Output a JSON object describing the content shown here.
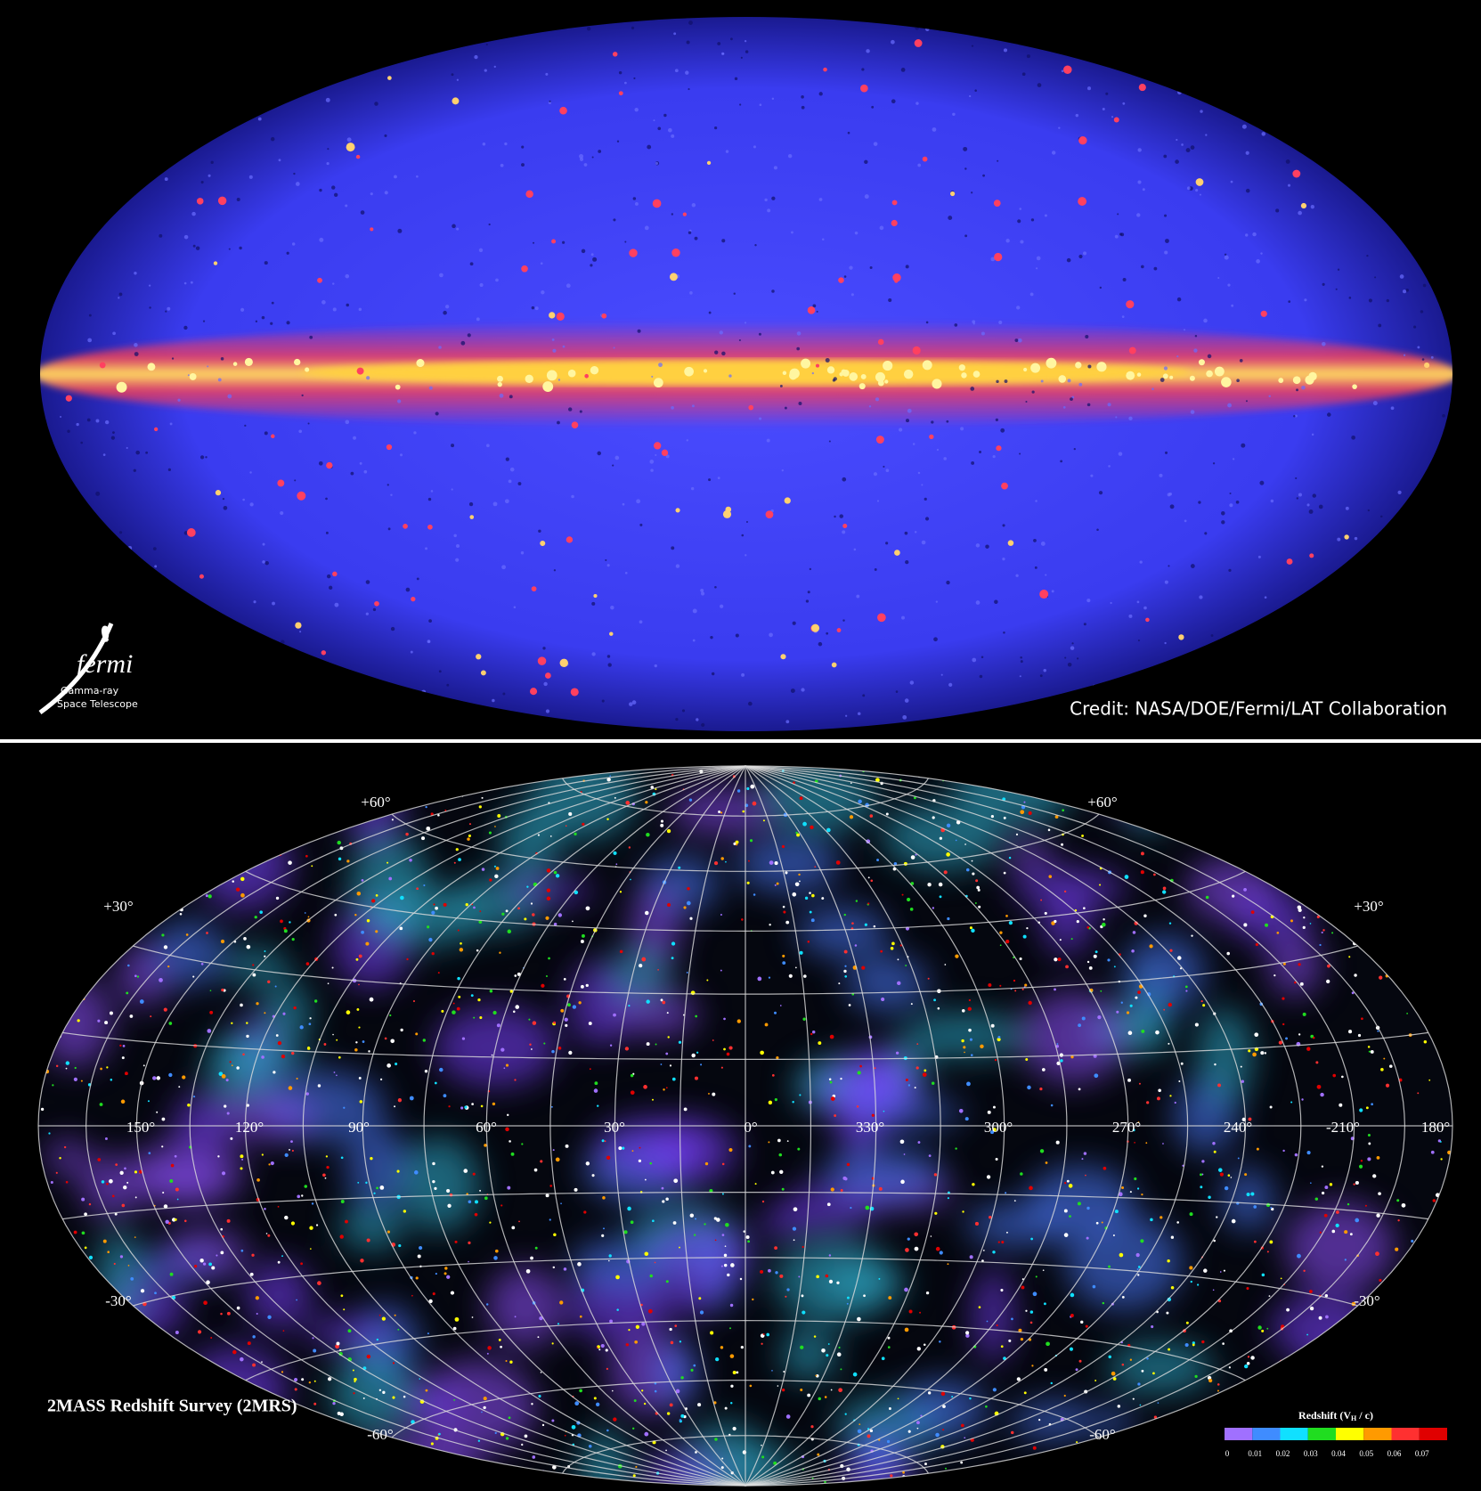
{
  "top_panel": {
    "logo": {
      "name": "fermi",
      "line1": "Gamma-ray",
      "line2": "Space Telescope"
    },
    "credit": "Credit: NASA/DOE/Fermi/LAT Collaboration"
  },
  "bottom_panel": {
    "title": "2MASS Redshift Survey (2MRS)",
    "latitude_labels": [
      "+60°",
      "+60°",
      "+30°",
      "+30°",
      "-30°",
      "-30°",
      "-60°",
      "-60°"
    ],
    "longitude_labels": [
      "150°",
      "120°",
      "90°",
      "60°",
      "30°",
      "0°",
      "330°",
      "300°",
      "270°",
      "240°",
      "-210°",
      "180°"
    ],
    "colorbar": {
      "title": [
        "Redshift (V",
        "H",
        " / c)"
      ],
      "ticks": [
        "0",
        "0.01",
        "0.02",
        "0.03",
        "0.04",
        "0.05",
        "0.06",
        "0.07"
      ],
      "colors": [
        "#a070ff",
        "#3f8cff",
        "#10e0ff",
        "#20dd20",
        "#ffff00",
        "#ff9a00",
        "#ff3030",
        "#e00000"
      ]
    }
  }
}
